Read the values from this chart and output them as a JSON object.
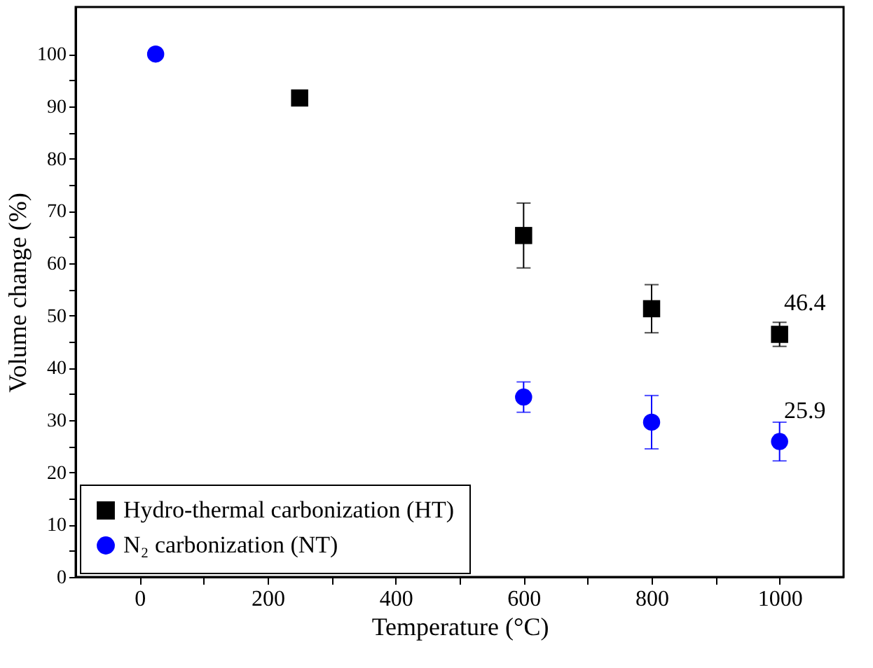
{
  "chart_data": {
    "type": "scatter",
    "xlabel": "Temperature (°C)",
    "ylabel": "Volume change (%)",
    "xlim": [
      -100,
      1100
    ],
    "ylim": [
      0,
      109
    ],
    "xticks": [
      0,
      {
        "value": 100,
        "label": null
      },
      200,
      {
        "value": 300,
        "label": null
      },
      400,
      {
        "value": 500,
        "label": null
      },
      600,
      {
        "value": 700,
        "label": null
      },
      800,
      {
        "value": 900,
        "label": null
      },
      1000
    ],
    "yticks": [
      0,
      {
        "value": 5,
        "label": null
      },
      10,
      {
        "value": 15,
        "label": null
      },
      20,
      {
        "value": 25,
        "label": null
      },
      30,
      {
        "value": 35,
        "label": null
      },
      40,
      {
        "value": 45,
        "label": null
      },
      50,
      {
        "value": 55,
        "label": null
      },
      60,
      {
        "value": 65,
        "label": null
      },
      70,
      {
        "value": 75,
        "label": null
      },
      80,
      {
        "value": 85,
        "label": null
      },
      90,
      {
        "value": 95,
        "label": null
      },
      100
    ],
    "legend": "bottom left",
    "grid": false,
    "series": [
      {
        "name": "Hydro-thermal carbonization (HT)",
        "color": "#000000",
        "marker": "square",
        "x": [
          250,
          600,
          800,
          1000
        ],
        "values": [
          91.6,
          65.3,
          51.3,
          46.4
        ],
        "errors": [
          null,
          6.2,
          4.6,
          2.3
        ]
      },
      {
        "name": "N₂ carbonization (NT)",
        "color": "#0000ff",
        "marker": "circle",
        "x": [
          25,
          600,
          800,
          1000
        ],
        "values": [
          100,
          34.4,
          29.6,
          25.9
        ],
        "errors": [
          null,
          2.9,
          5.1,
          3.7
        ]
      }
    ],
    "annotations": [
      {
        "text": "46.4",
        "x": 1000,
        "y": 46.4
      },
      {
        "text": "25.9",
        "x": 1000,
        "y": 25.9
      }
    ]
  }
}
